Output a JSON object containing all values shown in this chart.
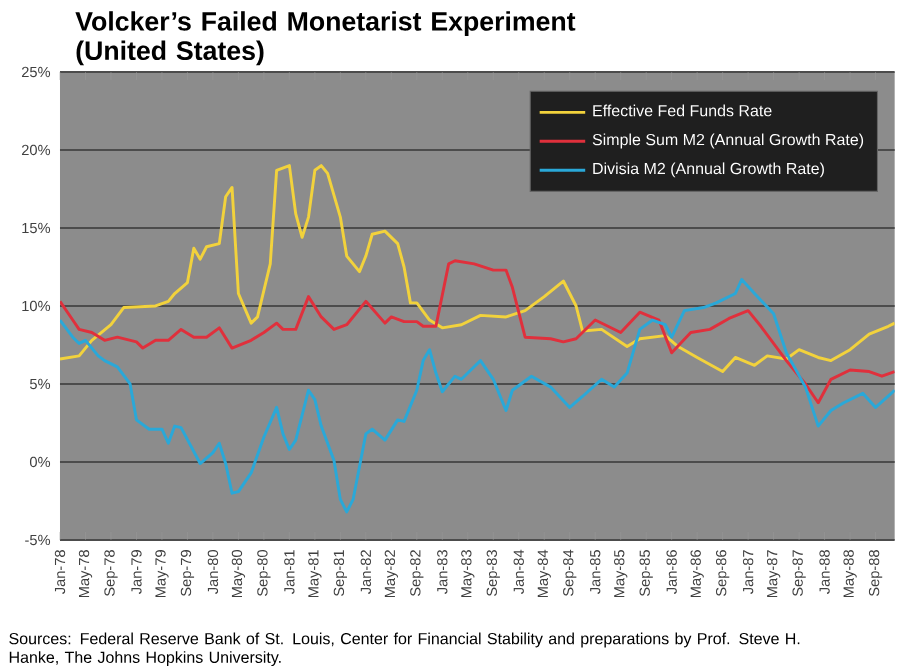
{
  "chart_data": {
    "type": "line",
    "title": "Volcker’s Failed Monetarist Experiment (United States)",
    "series": [
      {
        "name": "Effective Fed Funds Rate",
        "color": "#f2d23c",
        "x": [
          "1978-01",
          "1978-04",
          "1978-06",
          "1978-09",
          "1978-11",
          "1979-04",
          "1979-06",
          "1979-07",
          "1979-09",
          "1979-10",
          "1979-11",
          "1979-12",
          "1980-02",
          "1980-03",
          "1980-04",
          "1980-05",
          "1980-07",
          "1980-08",
          "1980-10",
          "1980-11",
          "1981-01",
          "1981-02",
          "1981-03",
          "1981-04",
          "1981-05",
          "1981-06",
          "1981-07",
          "1981-09",
          "1981-10",
          "1981-12",
          "1982-01",
          "1982-02",
          "1982-04",
          "1982-06",
          "1982-07",
          "1982-08",
          "1982-09",
          "1982-11",
          "1983-01",
          "1983-04",
          "1983-07",
          "1983-11",
          "1984-02",
          "1984-05",
          "1984-08",
          "1984-10",
          "1984-11",
          "1985-02",
          "1985-06",
          "1985-08",
          "1985-12",
          "1986-02",
          "1986-05",
          "1986-09",
          "1986-11",
          "1987-02",
          "1987-04",
          "1987-07",
          "1987-09",
          "1987-12",
          "1988-02",
          "1988-05",
          "1988-08",
          "1988-11",
          "1988-12"
        ],
        "values": [
          6.6,
          6.8,
          7.8,
          8.8,
          9.9,
          10.0,
          10.3,
          10.8,
          11.5,
          13.7,
          13.0,
          13.8,
          14.0,
          17.0,
          17.6,
          10.8,
          8.9,
          9.3,
          12.7,
          18.7,
          19.0,
          15.9,
          14.4,
          15.7,
          18.7,
          19.0,
          18.5,
          15.7,
          13.2,
          12.2,
          13.2,
          14.6,
          14.8,
          14.0,
          12.5,
          10.2,
          10.2,
          9.1,
          8.6,
          8.8,
          9.4,
          9.3,
          9.7,
          10.6,
          11.6,
          10.0,
          8.4,
          8.5,
          7.4,
          7.9,
          8.1,
          7.4,
          6.7,
          5.8,
          6.7,
          6.2,
          6.8,
          6.6,
          7.2,
          6.7,
          6.5,
          7.2,
          8.2,
          8.7,
          8.9
        ]
      },
      {
        "name": "Simple Sum M2 (Annual Growth Rate)",
        "color": "#e0303c",
        "x": [
          "1978-01",
          "1978-03",
          "1978-04",
          "1978-06",
          "1978-08",
          "1978-10",
          "1979-01",
          "1979-02",
          "1979-04",
          "1979-06",
          "1979-08",
          "1979-10",
          "1979-12",
          "1980-02",
          "1980-04",
          "1980-07",
          "1980-09",
          "1980-11",
          "1980-12",
          "1981-02",
          "1981-04",
          "1981-06",
          "1981-08",
          "1981-10",
          "1982-01",
          "1982-04",
          "1982-05",
          "1982-07",
          "1982-09",
          "1982-10",
          "1982-12",
          "1983-02",
          "1983-03",
          "1983-06",
          "1983-09",
          "1983-11",
          "1983-12",
          "1984-02",
          "1984-06",
          "1984-08",
          "1984-10",
          "1985-01",
          "1985-05",
          "1985-08",
          "1985-11",
          "1986-01",
          "1986-04",
          "1986-07",
          "1986-10",
          "1987-01",
          "1987-03",
          "1987-07",
          "1987-10",
          "1987-12",
          "1988-02",
          "1988-05",
          "1988-08",
          "1988-10",
          "1988-12"
        ],
        "values": [
          10.3,
          9.1,
          8.5,
          8.3,
          7.8,
          8.0,
          7.7,
          7.3,
          7.8,
          7.8,
          8.5,
          8.0,
          8.0,
          8.6,
          7.3,
          7.8,
          8.3,
          8.9,
          8.5,
          8.5,
          10.6,
          9.3,
          8.5,
          8.8,
          10.3,
          8.9,
          9.3,
          9.0,
          9.0,
          8.7,
          8.7,
          12.7,
          12.9,
          12.7,
          12.3,
          12.3,
          11.2,
          8.0,
          7.9,
          7.7,
          7.9,
          9.1,
          8.3,
          9.6,
          9.1,
          7.0,
          8.3,
          8.5,
          9.2,
          9.7,
          8.7,
          6.5,
          5.0,
          3.8,
          5.3,
          5.9,
          5.8,
          5.5,
          5.8
        ]
      },
      {
        "name": "Divisia M2 (Annual Growth Rate)",
        "color": "#2aa8d8",
        "x": [
          "1978-01",
          "1978-03",
          "1978-04",
          "1978-05",
          "1978-07",
          "1978-08",
          "1978-10",
          "1978-12",
          "1979-01",
          "1979-03",
          "1979-05",
          "1979-06",
          "1979-07",
          "1979-08",
          "1979-11",
          "1980-01",
          "1980-02",
          "1980-03",
          "1980-04",
          "1980-05",
          "1980-07",
          "1980-09",
          "1980-11",
          "1980-12",
          "1981-01",
          "1981-02",
          "1981-04",
          "1981-05",
          "1981-06",
          "1981-08",
          "1981-09",
          "1981-10",
          "1981-11",
          "1981-12",
          "1982-01",
          "1982-02",
          "1982-04",
          "1982-06",
          "1982-07",
          "1982-09",
          "1982-10",
          "1982-11",
          "1982-12",
          "1983-01",
          "1983-03",
          "1983-04",
          "1983-06",
          "1983-07",
          "1983-09",
          "1983-11",
          "1983-12",
          "1984-03",
          "1984-06",
          "1984-09",
          "1984-11",
          "1985-02",
          "1985-04",
          "1985-06",
          "1985-08",
          "1985-10",
          "1985-12",
          "1986-01",
          "1986-03",
          "1986-06",
          "1986-08",
          "1986-11",
          "1986-12",
          "1987-02",
          "1987-05",
          "1987-07",
          "1987-10",
          "1987-12",
          "1988-02",
          "1988-04",
          "1988-07",
          "1988-09",
          "1988-12"
        ],
        "values": [
          9.1,
          8.0,
          7.6,
          7.8,
          6.8,
          6.5,
          6.1,
          5.0,
          2.7,
          2.1,
          2.1,
          1.2,
          2.3,
          2.2,
          -0.1,
          0.6,
          1.2,
          -0.1,
          -2.0,
          -1.9,
          -0.7,
          1.6,
          3.5,
          1.8,
          0.8,
          1.4,
          4.6,
          4.0,
          2.3,
          0.1,
          -2.4,
          -3.2,
          -2.4,
          -0.3,
          1.8,
          2.1,
          1.4,
          2.7,
          2.6,
          4.6,
          6.5,
          7.2,
          5.7,
          4.5,
          5.5,
          5.3,
          6.1,
          6.5,
          5.3,
          3.3,
          4.6,
          5.5,
          4.8,
          3.5,
          4.2,
          5.3,
          4.8,
          5.7,
          8.5,
          9.1,
          8.8,
          8.0,
          9.7,
          9.9,
          10.2,
          10.8,
          11.7,
          10.8,
          9.5,
          7.0,
          4.8,
          2.3,
          3.3,
          3.8,
          4.4,
          3.5,
          4.6
        ]
      }
    ],
    "xlim": [
      "1978-01",
      "1988-12"
    ],
    "xticks": [
      {
        "value": "1978-01",
        "label": "Jan-78"
      },
      {
        "value": "1978-05",
        "label": "May-78"
      },
      {
        "value": "1978-09",
        "label": "Sep-78"
      },
      {
        "value": "1979-01",
        "label": "Jan-79"
      },
      {
        "value": "1979-05",
        "label": "May-79"
      },
      {
        "value": "1979-09",
        "label": "Sep-79"
      },
      {
        "value": "1980-01",
        "label": "Jan-80"
      },
      {
        "value": "1980-05",
        "label": "May-80"
      },
      {
        "value": "1980-09",
        "label": "Sep-80"
      },
      {
        "value": "1981-01",
        "label": "Jan-81"
      },
      {
        "value": "1981-05",
        "label": "May-81"
      },
      {
        "value": "1981-09",
        "label": "Sep-81"
      },
      {
        "value": "1982-01",
        "label": "Jan-82"
      },
      {
        "value": "1982-05",
        "label": "May-82"
      },
      {
        "value": "1982-09",
        "label": "Sep-82"
      },
      {
        "value": "1983-01",
        "label": "Jan-83"
      },
      {
        "value": "1983-05",
        "label": "May-83"
      },
      {
        "value": "1983-09",
        "label": "Sep-83"
      },
      {
        "value": "1984-01",
        "label": "Jan-84"
      },
      {
        "value": "1984-05",
        "label": "May-84"
      },
      {
        "value": "1984-09",
        "label": "Sep-84"
      },
      {
        "value": "1985-01",
        "label": "Jan-85"
      },
      {
        "value": "1985-05",
        "label": "May-85"
      },
      {
        "value": "1985-09",
        "label": "Sep-85"
      },
      {
        "value": "1986-01",
        "label": "Jan-86"
      },
      {
        "value": "1986-05",
        "label": "May-86"
      },
      {
        "value": "1986-09",
        "label": "Sep-86"
      },
      {
        "value": "1987-01",
        "label": "Jan-87"
      },
      {
        "value": "1987-05",
        "label": "May-87"
      },
      {
        "value": "1987-09",
        "label": "Sep-87"
      },
      {
        "value": "1988-01",
        "label": "Jan-88"
      },
      {
        "value": "1988-05",
        "label": "May-88"
      },
      {
        "value": "1988-09",
        "label": "Sep-88"
      }
    ],
    "ylim": [
      -5,
      25
    ],
    "yticks": [
      {
        "value": -5,
        "label": "-5%"
      },
      {
        "value": 0,
        "label": "0%"
      },
      {
        "value": 5,
        "label": "5%"
      },
      {
        "value": 10,
        "label": "10%"
      },
      {
        "value": 15,
        "label": "15%"
      },
      {
        "value": 20,
        "label": "20%"
      },
      {
        "value": 25,
        "label": "25%"
      }
    ],
    "grid": "y",
    "legend": "top right",
    "annotations": [
      "Sources: Federal Reserve Bank of St. Louis, Center for Financial Stability and preparations by Prof. Steve H. Hanke, The Johns Hopkins University."
    ]
  }
}
